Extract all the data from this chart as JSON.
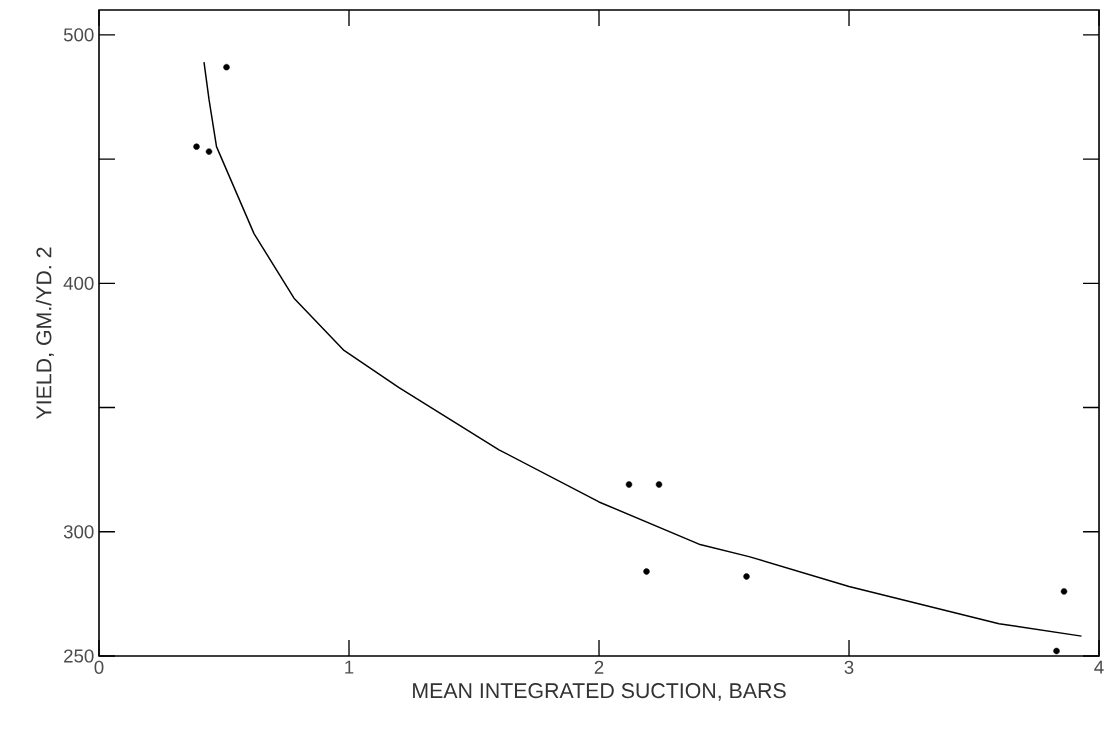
{
  "chart_data": {
    "type": "scatter",
    "xlabel": "MEAN INTEGRATED SUCTION, BARS",
    "ylabel": "YIELD, GM./YD. 2",
    "xlim": [
      0,
      4
    ],
    "ylim": [
      250,
      510
    ],
    "xticks": [
      0,
      1,
      2,
      3,
      4
    ],
    "yticks": [
      250,
      300,
      {
        "value": 350,
        "label": null
      },
      400,
      {
        "value": 450,
        "label": null
      },
      500
    ],
    "series": [
      {
        "color": "#000000",
        "marker": "circle",
        "x": [
          0.51,
          0.39,
          0.44,
          2.12,
          2.24,
          2.19,
          2.59,
          3.86,
          3.83
        ],
        "values": [
          487,
          455,
          453,
          319,
          319,
          284,
          282,
          276,
          252
        ]
      },
      {
        "type": "line",
        "color": "#000000",
        "line_style": "solid",
        "x": [
          0.42,
          0.44,
          0.47,
          0.62,
          0.78,
          0.98,
          1.2,
          1.6,
          2.0,
          2.4,
          2.6,
          3.0,
          3.6,
          3.93
        ],
        "values": [
          489,
          474,
          455,
          420,
          394,
          373,
          358,
          333,
          312,
          295,
          290,
          278,
          263,
          258
        ]
      }
    ]
  }
}
